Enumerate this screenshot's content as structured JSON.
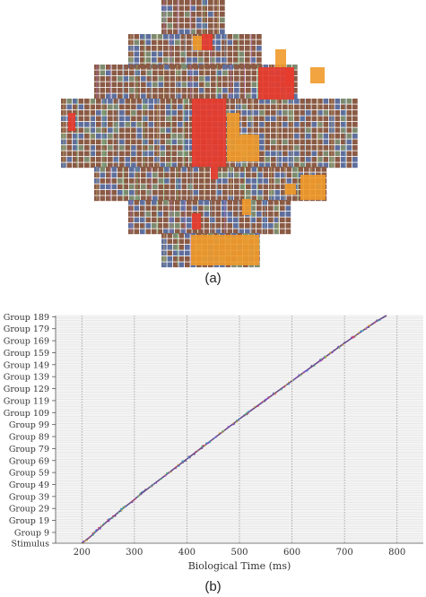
{
  "captions": {
    "a": "(a)",
    "b": "(b)"
  },
  "colors": {
    "tile_brown": "#8a5a45",
    "tile_blue": "#5e6e9c",
    "highlight_red": "#e63b2e",
    "highlight_orange": "#f09a2a",
    "raster_line": "#6a4b8a"
  },
  "chart_data": [
    {
      "type": "heatmap",
      "description_key": "panel-a",
      "xlabel": "",
      "ylabel": ""
    },
    {
      "type": "scatter",
      "xlabel": "Biological Time (ms)",
      "ylabel": "",
      "xlim": [
        150,
        850
      ],
      "x_ticks": [
        200,
        300,
        400,
        500,
        600,
        700,
        800
      ],
      "y_tick_labels": [
        "Stimulus",
        "Group 9",
        "Group 19",
        "Group 29",
        "Group 39",
        "Group 49",
        "Group 59",
        "Group 69",
        "Group 79",
        "Group 89",
        "Group 99",
        "Group 109",
        "Group 119",
        "Group 129",
        "Group 139",
        "Group 149",
        "Group 159",
        "Group 169",
        "Group 179",
        "Group 189"
      ],
      "y_range": [
        0,
        190
      ],
      "series": [
        {
          "x": [
            200,
            215,
            230,
            245,
            262,
            278,
            296,
            312,
            330,
            348,
            366,
            384,
            402,
            420,
            438,
            456,
            474,
            492,
            510,
            529,
            548,
            567,
            586,
            605,
            624,
            643,
            662,
            681,
            700,
            720,
            740,
            760,
            780
          ],
          "y": [
            0,
            5,
            11,
            17,
            23,
            29,
            35,
            41,
            47,
            53,
            59,
            65,
            71,
            77,
            83,
            89,
            95,
            101,
            107,
            113,
            119,
            125,
            131,
            137,
            143,
            149,
            155,
            161,
            167,
            173,
            179,
            185,
            190
          ]
        }
      ]
    }
  ]
}
